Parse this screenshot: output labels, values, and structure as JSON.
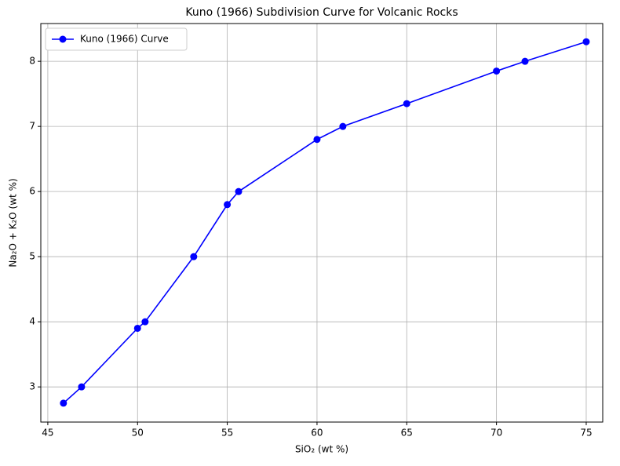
{
  "chart_data": {
    "type": "line",
    "title": "Kuno (1966) Subdivision Curve for Volcanic Rocks",
    "xlabel": "SiO₂ (wt %)",
    "ylabel": "Na₂O + K₂O (wt %)",
    "x": [
      45.87,
      46.88,
      50,
      50.42,
      53.13,
      55,
      55.63,
      60,
      61.44,
      65,
      70,
      71.59,
      75
    ],
    "series": [
      {
        "name": "Kuno (1966) Curve",
        "color": "#0000ff",
        "values": [
          2.75,
          3.0,
          3.9,
          4.0,
          5.0,
          5.8,
          6.0,
          6.8,
          7.0,
          7.35,
          7.85,
          8.0,
          8.3
        ]
      }
    ],
    "xlim": [
      44.61,
      75.92
    ],
    "xticks": [
      45,
      50,
      55,
      60,
      65,
      70,
      75
    ],
    "ylim": [
      2.46,
      8.58
    ],
    "yticks": [
      3,
      4,
      5,
      6,
      7,
      8
    ],
    "grid": true,
    "legend": "upper-left"
  }
}
